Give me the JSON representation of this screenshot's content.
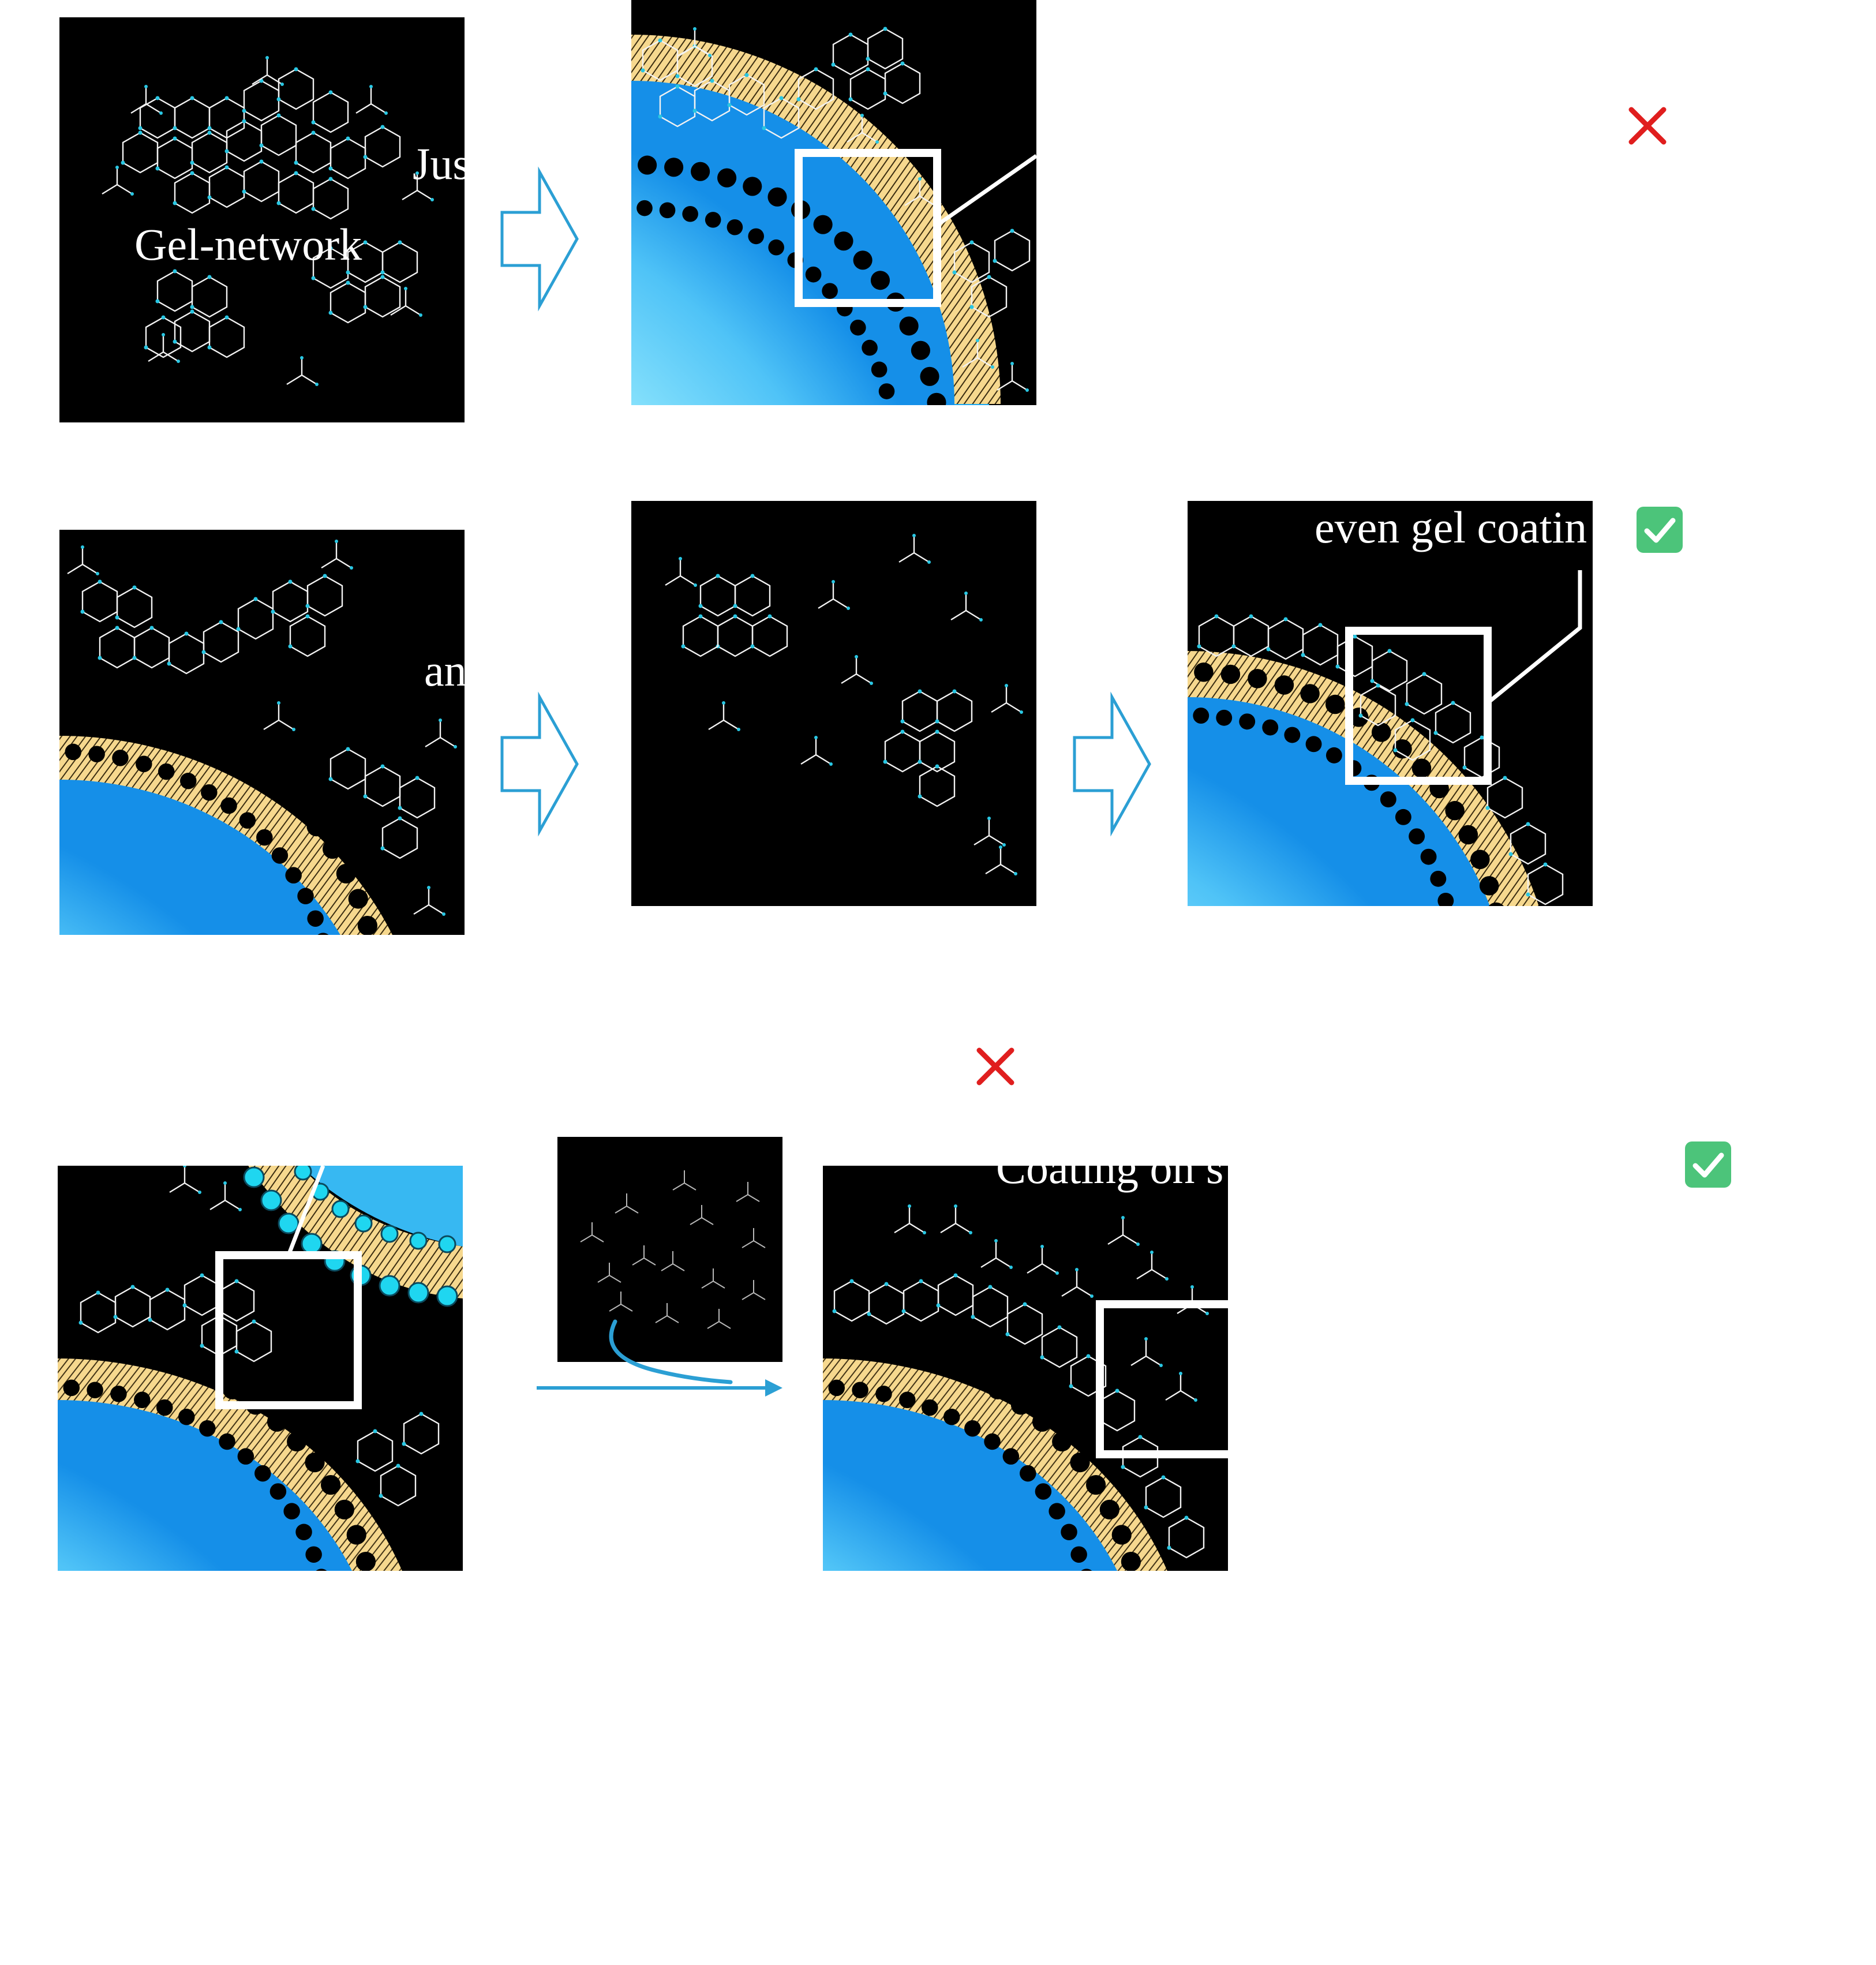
{
  "labels": {
    "gel_network": "Gel-network",
    "row1_callout": "Jus",
    "row2_callout": "an",
    "even_coating": "even gel coatin",
    "coating_on": "Coating on s"
  },
  "status": {
    "row1_mark": "fail",
    "row2_mark": "success",
    "row3_fail_mark": "fail",
    "row3_success_mark": "success"
  },
  "colors": {
    "panel_background": "#000000",
    "network_line": "#f2f2f2",
    "network_node": "#29c7e3",
    "lipid_head": "#1fd6f0",
    "lipid_tail_band": "#f6d88e",
    "vesicle_core": "#c8ffff",
    "vesicle_edge": "#1aa7f0",
    "arrow_outline": "#2b9fd4",
    "cross_red": "#e01e1e",
    "check_green": "#4cc47a"
  },
  "icons": [
    "hollow-right-arrow-icon",
    "red-cross-icon",
    "green-check-icon",
    "curved-arrow-icon"
  ]
}
